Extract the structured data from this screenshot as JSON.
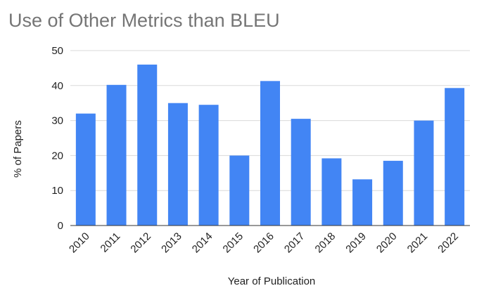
{
  "chart_data": {
    "type": "bar",
    "title": "Use of Other Metrics than BLEU",
    "xlabel": "Year of Publication",
    "ylabel": "% of Papers",
    "categories": [
      "2010",
      "2011",
      "2012",
      "2013",
      "2014",
      "2015",
      "2016",
      "2017",
      "2018",
      "2019",
      "2020",
      "2021",
      "2022"
    ],
    "values": [
      32,
      40.2,
      46,
      35,
      34.5,
      20,
      41.3,
      30.5,
      19.2,
      13.2,
      18.5,
      30,
      39.3
    ],
    "ylim": [
      0,
      50
    ],
    "yticks": [
      "0",
      "10",
      "20",
      "30",
      "40",
      "50"
    ],
    "grid": true,
    "legend": "none",
    "bar_color": "#4285f4"
  }
}
